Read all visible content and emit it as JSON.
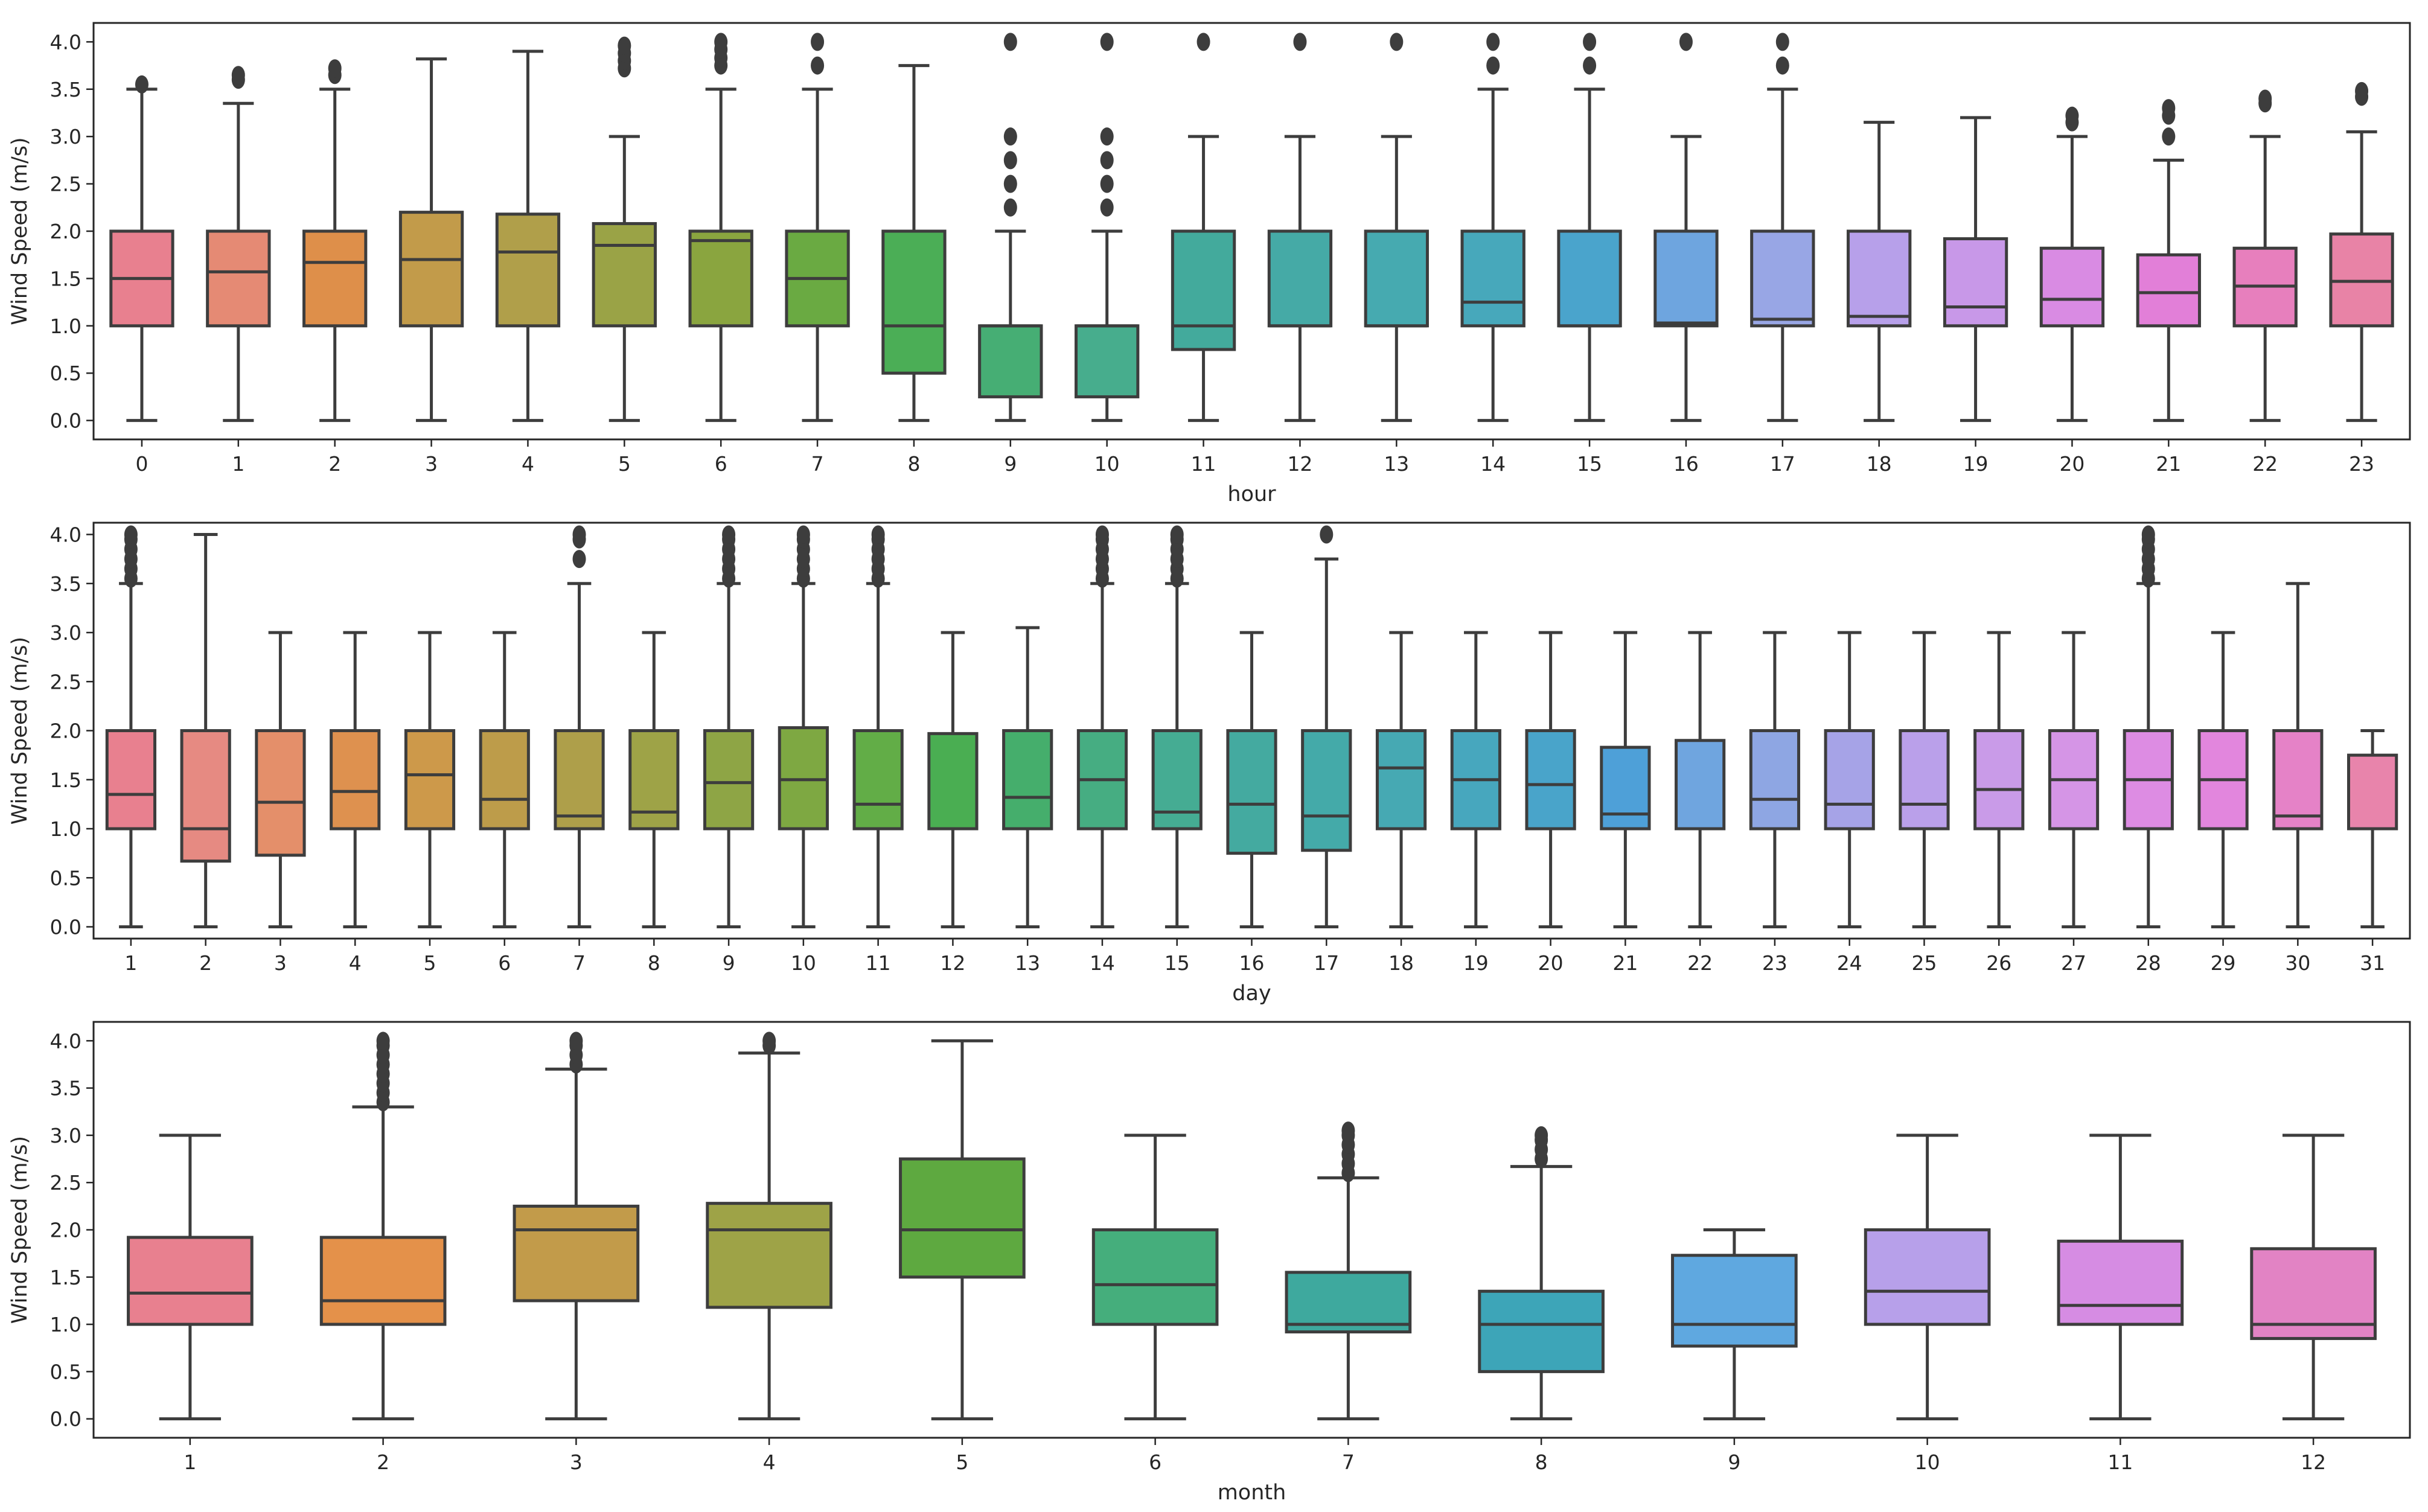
{
  "chart_data": [
    {
      "type": "box",
      "xlabel": "hour",
      "ylabel": "Wind Speed (m/s)",
      "ylim": [
        -0.2,
        4.2
      ],
      "yticks": [
        "0.0",
        "0.5",
        "1.0",
        "1.5",
        "2.0",
        "2.5",
        "3.0",
        "3.5",
        "4.0"
      ],
      "categories": [
        "0",
        "1",
        "2",
        "3",
        "4",
        "5",
        "6",
        "7",
        "8",
        "9",
        "10",
        "11",
        "12",
        "13",
        "14",
        "15",
        "16",
        "17",
        "18",
        "19",
        "20",
        "21",
        "22",
        "23"
      ],
      "boxes": [
        {
          "q1": 1.0,
          "median": 1.5,
          "q3": 2.0,
          "lo": 0,
          "hi": 3.5,
          "out": [
            3.55
          ]
        },
        {
          "q1": 1.0,
          "median": 1.57,
          "q3": 2.0,
          "lo": 0,
          "hi": 3.35,
          "out": [
            3.6,
            3.65
          ]
        },
        {
          "q1": 1.0,
          "median": 1.67,
          "q3": 2.0,
          "lo": 0,
          "hi": 3.5,
          "out": [
            3.65,
            3.72
          ]
        },
        {
          "q1": 1.0,
          "median": 1.7,
          "q3": 2.2,
          "lo": 0,
          "hi": 3.82,
          "out": []
        },
        {
          "q1": 1.0,
          "median": 1.78,
          "q3": 2.18,
          "lo": 0,
          "hi": 3.9,
          "out": []
        },
        {
          "q1": 1.0,
          "median": 1.85,
          "q3": 2.08,
          "lo": 0,
          "hi": 3.0,
          "out": [
            3.72,
            3.8,
            3.88,
            3.96
          ]
        },
        {
          "q1": 1.0,
          "median": 1.9,
          "q3": 2.0,
          "lo": 0,
          "hi": 3.5,
          "out": [
            3.75,
            3.83,
            3.92,
            4.0
          ]
        },
        {
          "q1": 1.0,
          "median": 1.5,
          "q3": 2.0,
          "lo": 0,
          "hi": 3.5,
          "out": [
            3.75,
            4.0
          ]
        },
        {
          "q1": 0.5,
          "median": 1.0,
          "q3": 2.0,
          "lo": 0,
          "hi": 3.75,
          "out": []
        },
        {
          "q1": 0.25,
          "median": 1.0,
          "q3": 1.0,
          "lo": 0,
          "hi": 2.0,
          "out": [
            2.25,
            2.5,
            2.75,
            3.0,
            4.0
          ]
        },
        {
          "q1": 0.25,
          "median": 1.0,
          "q3": 1.0,
          "lo": 0,
          "hi": 2.0,
          "out": [
            2.25,
            2.5,
            2.75,
            3.0,
            4.0
          ]
        },
        {
          "q1": 0.75,
          "median": 1.0,
          "q3": 2.0,
          "lo": 0,
          "hi": 3.0,
          "out": [
            4.0
          ]
        },
        {
          "q1": 1.0,
          "median": 1.0,
          "q3": 2.0,
          "lo": 0,
          "hi": 3.0,
          "out": [
            4.0
          ]
        },
        {
          "q1": 1.0,
          "median": 1.0,
          "q3": 2.0,
          "lo": 0,
          "hi": 3.0,
          "out": [
            4.0
          ]
        },
        {
          "q1": 1.0,
          "median": 1.25,
          "q3": 2.0,
          "lo": 0,
          "hi": 3.5,
          "out": [
            3.75,
            4.0
          ]
        },
        {
          "q1": 1.0,
          "median": 1.0,
          "q3": 2.0,
          "lo": 0,
          "hi": 3.5,
          "out": [
            3.75,
            4.0
          ]
        },
        {
          "q1": 1.0,
          "median": 1.03,
          "q3": 2.0,
          "lo": 0,
          "hi": 3.0,
          "out": [
            4.0
          ]
        },
        {
          "q1": 1.0,
          "median": 1.07,
          "q3": 2.0,
          "lo": 0,
          "hi": 3.5,
          "out": [
            3.75,
            4.0
          ]
        },
        {
          "q1": 1.0,
          "median": 1.1,
          "q3": 2.0,
          "lo": 0,
          "hi": 3.15,
          "out": []
        },
        {
          "q1": 1.0,
          "median": 1.2,
          "q3": 1.92,
          "lo": 0,
          "hi": 3.2,
          "out": []
        },
        {
          "q1": 1.0,
          "median": 1.28,
          "q3": 1.82,
          "lo": 0,
          "hi": 3.0,
          "out": [
            3.15,
            3.22
          ]
        },
        {
          "q1": 1.0,
          "median": 1.35,
          "q3": 1.75,
          "lo": 0,
          "hi": 2.75,
          "out": [
            3.0,
            3.22,
            3.3
          ]
        },
        {
          "q1": 1.0,
          "median": 1.42,
          "q3": 1.82,
          "lo": 0,
          "hi": 3.0,
          "out": [
            3.35,
            3.4
          ]
        },
        {
          "q1": 1.0,
          "median": 1.47,
          "q3": 1.97,
          "lo": 0,
          "hi": 3.05,
          "out": [
            3.42,
            3.48
          ]
        }
      ]
    },
    {
      "type": "box",
      "xlabel": "day",
      "ylabel": "Wind Speed (m/s)",
      "ylim": [
        -0.12,
        4.12
      ],
      "yticks": [
        "0.0",
        "0.5",
        "1.0",
        "1.5",
        "2.0",
        "2.5",
        "3.0",
        "3.5",
        "4.0"
      ],
      "categories": [
        "1",
        "2",
        "3",
        "4",
        "5",
        "6",
        "7",
        "8",
        "9",
        "10",
        "11",
        "12",
        "13",
        "14",
        "15",
        "16",
        "17",
        "18",
        "19",
        "20",
        "21",
        "22",
        "23",
        "24",
        "25",
        "26",
        "27",
        "28",
        "29",
        "30",
        "31"
      ],
      "boxes": [
        {
          "q1": 1.0,
          "median": 1.35,
          "q3": 2.0,
          "lo": 0,
          "hi": 3.5,
          "out": [
            3.55,
            3.65,
            3.75,
            3.85,
            3.95,
            4.0
          ]
        },
        {
          "q1": 0.67,
          "median": 1.0,
          "q3": 2.0,
          "lo": 0,
          "hi": 4.0,
          "out": []
        },
        {
          "q1": 0.73,
          "median": 1.27,
          "q3": 2.0,
          "lo": 0,
          "hi": 3.0,
          "out": []
        },
        {
          "q1": 1.0,
          "median": 1.38,
          "q3": 2.0,
          "lo": 0,
          "hi": 3.0,
          "out": []
        },
        {
          "q1": 1.0,
          "median": 1.55,
          "q3": 2.0,
          "lo": 0,
          "hi": 3.0,
          "out": []
        },
        {
          "q1": 1.0,
          "median": 1.3,
          "q3": 2.0,
          "lo": 0,
          "hi": 3.0,
          "out": []
        },
        {
          "q1": 1.0,
          "median": 1.13,
          "q3": 2.0,
          "lo": 0,
          "hi": 3.5,
          "out": [
            3.75,
            3.95,
            4.0
          ]
        },
        {
          "q1": 1.0,
          "median": 1.17,
          "q3": 2.0,
          "lo": 0,
          "hi": 3.0,
          "out": []
        },
        {
          "q1": 1.0,
          "median": 1.47,
          "q3": 2.0,
          "lo": 0,
          "hi": 3.5,
          "out": [
            3.55,
            3.65,
            3.75,
            3.85,
            3.95,
            4.0
          ]
        },
        {
          "q1": 1.0,
          "median": 1.5,
          "q3": 2.03,
          "lo": 0,
          "hi": 3.5,
          "out": [
            3.55,
            3.65,
            3.75,
            3.85,
            3.95,
            4.0
          ]
        },
        {
          "q1": 1.0,
          "median": 1.25,
          "q3": 2.0,
          "lo": 0,
          "hi": 3.5,
          "out": [
            3.55,
            3.65,
            3.75,
            3.85,
            3.95,
            4.0
          ]
        },
        {
          "q1": 1.0,
          "median": 1.0,
          "q3": 1.97,
          "lo": 0,
          "hi": 3.0,
          "out": []
        },
        {
          "q1": 1.0,
          "median": 1.32,
          "q3": 2.0,
          "lo": 0,
          "hi": 3.05,
          "out": []
        },
        {
          "q1": 1.0,
          "median": 1.5,
          "q3": 2.0,
          "lo": 0,
          "hi": 3.5,
          "out": [
            3.55,
            3.65,
            3.75,
            3.85,
            3.95,
            4.0
          ]
        },
        {
          "q1": 1.0,
          "median": 1.17,
          "q3": 2.0,
          "lo": 0,
          "hi": 3.5,
          "out": [
            3.55,
            3.65,
            3.75,
            3.85,
            3.95,
            4.0
          ]
        },
        {
          "q1": 0.75,
          "median": 1.25,
          "q3": 2.0,
          "lo": 0,
          "hi": 3.0,
          "out": []
        },
        {
          "q1": 0.78,
          "median": 1.13,
          "q3": 2.0,
          "lo": 0,
          "hi": 3.75,
          "out": [
            4.0
          ]
        },
        {
          "q1": 1.0,
          "median": 1.62,
          "q3": 2.0,
          "lo": 0,
          "hi": 3.0,
          "out": []
        },
        {
          "q1": 1.0,
          "median": 1.5,
          "q3": 2.0,
          "lo": 0,
          "hi": 3.0,
          "out": []
        },
        {
          "q1": 1.0,
          "median": 1.45,
          "q3": 2.0,
          "lo": 0,
          "hi": 3.0,
          "out": []
        },
        {
          "q1": 1.0,
          "median": 1.15,
          "q3": 1.83,
          "lo": 0,
          "hi": 3.0,
          "out": []
        },
        {
          "q1": 1.0,
          "median": 1.0,
          "q3": 1.9,
          "lo": 0,
          "hi": 3.0,
          "out": []
        },
        {
          "q1": 1.0,
          "median": 1.3,
          "q3": 2.0,
          "lo": 0,
          "hi": 3.0,
          "out": []
        },
        {
          "q1": 1.0,
          "median": 1.25,
          "q3": 2.0,
          "lo": 0,
          "hi": 3.0,
          "out": []
        },
        {
          "q1": 1.0,
          "median": 1.25,
          "q3": 2.0,
          "lo": 0,
          "hi": 3.0,
          "out": []
        },
        {
          "q1": 1.0,
          "median": 1.4,
          "q3": 2.0,
          "lo": 0,
          "hi": 3.0,
          "out": []
        },
        {
          "q1": 1.0,
          "median": 1.5,
          "q3": 2.0,
          "lo": 0,
          "hi": 3.0,
          "out": []
        },
        {
          "q1": 1.0,
          "median": 1.5,
          "q3": 2.0,
          "lo": 0,
          "hi": 3.5,
          "out": [
            3.55,
            3.65,
            3.75,
            3.85,
            3.95,
            4.0
          ]
        },
        {
          "q1": 1.0,
          "median": 1.5,
          "q3": 2.0,
          "lo": 0,
          "hi": 3.0,
          "out": []
        },
        {
          "q1": 1.0,
          "median": 1.13,
          "q3": 2.0,
          "lo": 0,
          "hi": 3.5,
          "out": []
        },
        {
          "q1": 1.0,
          "median": 1.0,
          "q3": 1.75,
          "lo": 0,
          "hi": 2.0,
          "out": []
        }
      ]
    },
    {
      "type": "box",
      "xlabel": "month",
      "ylabel": "Wind Speed (m/s)",
      "ylim": [
        -0.2,
        4.2
      ],
      "yticks": [
        "0.0",
        "0.5",
        "1.0",
        "1.5",
        "2.0",
        "2.5",
        "3.0",
        "3.5",
        "4.0"
      ],
      "categories": [
        "1",
        "2",
        "3",
        "4",
        "5",
        "6",
        "7",
        "8",
        "9",
        "10",
        "11",
        "12"
      ],
      "boxes": [
        {
          "q1": 1.0,
          "median": 1.33,
          "q3": 1.92,
          "lo": 0,
          "hi": 3.0,
          "out": []
        },
        {
          "q1": 1.0,
          "median": 1.25,
          "q3": 1.92,
          "lo": 0,
          "hi": 3.3,
          "out": [
            3.35,
            3.45,
            3.55,
            3.65,
            3.75,
            3.85,
            3.95,
            4.0
          ]
        },
        {
          "q1": 1.25,
          "median": 2.0,
          "q3": 2.25,
          "lo": 0,
          "hi": 3.7,
          "out": [
            3.75,
            3.85,
            3.95,
            4.0
          ]
        },
        {
          "q1": 1.18,
          "median": 2.0,
          "q3": 2.28,
          "lo": 0,
          "hi": 3.87,
          "out": [
            3.95,
            4.0
          ]
        },
        {
          "q1": 1.5,
          "median": 2.0,
          "q3": 2.75,
          "lo": 0,
          "hi": 4.0,
          "out": []
        },
        {
          "q1": 1.0,
          "median": 1.42,
          "q3": 2.0,
          "lo": 0,
          "hi": 3.0,
          "out": []
        },
        {
          "q1": 0.92,
          "median": 1.0,
          "q3": 1.55,
          "lo": 0,
          "hi": 2.55,
          "out": [
            2.6,
            2.7,
            2.8,
            2.9,
            3.0,
            3.05
          ]
        },
        {
          "q1": 0.5,
          "median": 1.0,
          "q3": 1.35,
          "lo": 0,
          "hi": 2.67,
          "out": [
            2.75,
            2.85,
            2.95,
            3.0
          ]
        },
        {
          "q1": 0.77,
          "median": 1.0,
          "q3": 1.73,
          "lo": 0,
          "hi": 2.0,
          "out": []
        },
        {
          "q1": 1.0,
          "median": 1.35,
          "q3": 2.0,
          "lo": 0,
          "hi": 3.0,
          "out": []
        },
        {
          "q1": 1.0,
          "median": 1.2,
          "q3": 1.88,
          "lo": 0,
          "hi": 3.0,
          "out": []
        },
        {
          "q1": 0.85,
          "median": 1.0,
          "q3": 1.8,
          "lo": 0,
          "hi": 3.0,
          "out": []
        }
      ]
    }
  ],
  "palettes": {
    "hour": [
      "#e8808f",
      "#e58a74",
      "#de8f4a",
      "#c29b4a",
      "#b09f4a",
      "#9aa346",
      "#8aa53f",
      "#6aaa42",
      "#4bae56",
      "#46ae74",
      "#47ad8d",
      "#43aa9c",
      "#45aaa6",
      "#46aab0",
      "#47a8bb",
      "#4aa4cc",
      "#6ea5df",
      "#98a6e5",
      "#b7a0ea",
      "#c898e8",
      "#d98be3",
      "#e27fd8",
      "#e77fbd",
      "#e883a6"
    ],
    "day": [
      "#e8808f",
      "#e68a82",
      "#e48f6a",
      "#de914f",
      "#cd994a",
      "#bd9c4a",
      "#ae9f4a",
      "#9ea347",
      "#8ea545",
      "#7ea842",
      "#62ad47",
      "#4aae52",
      "#45ae6c",
      "#46ad82",
      "#45ac93",
      "#44aaa0",
      "#44aaa9",
      "#46a9b3",
      "#47a7be",
      "#49a4ca",
      "#4ea0d8",
      "#6fa5df",
      "#8ea6e3",
      "#a6a3e7",
      "#baa0ea",
      "#c99be8",
      "#d595e6",
      "#dd8ce3",
      "#e286dd",
      "#e582c7",
      "#e884ab"
    ],
    "month": [
      "#e8808f",
      "#e4914a",
      "#c29b4a",
      "#9ea347",
      "#5ea940",
      "#45ae7c",
      "#3ea99e",
      "#3da5b8",
      "#5fa8e0",
      "#b7a0ea",
      "#d68ce3",
      "#e283c4"
    ]
  }
}
